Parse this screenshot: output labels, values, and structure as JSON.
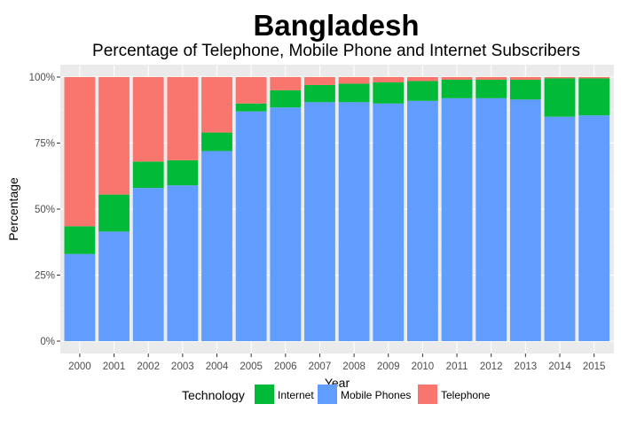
{
  "chart_data": {
    "type": "bar",
    "stacked": true,
    "title": "Bangladesh",
    "subtitle": "Percentage of Telephone, Mobile Phone and Internet Subscribers",
    "xlabel": "Year",
    "ylabel": "Percentage",
    "ylim": [
      0,
      1
    ],
    "yticks": [
      "0%",
      "25%",
      "50%",
      "75%",
      "100%"
    ],
    "grid": true,
    "legend_position": "bottom",
    "legend_title": "Technology",
    "categories": [
      "2000",
      "2001",
      "2002",
      "2003",
      "2004",
      "2005",
      "2006",
      "2007",
      "2008",
      "2009",
      "2010",
      "2011",
      "2012",
      "2013",
      "2014",
      "2015"
    ],
    "series": [
      {
        "name": "Mobile Phones",
        "color": "#619CFF",
        "values": [
          0.33,
          0.415,
          0.58,
          0.59,
          0.72,
          0.87,
          0.885,
          0.905,
          0.905,
          0.9,
          0.91,
          0.92,
          0.92,
          0.915,
          0.85,
          0.855
        ]
      },
      {
        "name": "Internet",
        "color": "#00BA38",
        "values": [
          0.105,
          0.14,
          0.1,
          0.095,
          0.07,
          0.03,
          0.065,
          0.065,
          0.07,
          0.08,
          0.075,
          0.07,
          0.07,
          0.075,
          0.145,
          0.14
        ]
      },
      {
        "name": "Telephone",
        "color": "#F8766D",
        "values": [
          0.565,
          0.445,
          0.32,
          0.315,
          0.21,
          0.1,
          0.05,
          0.03,
          0.025,
          0.02,
          0.015,
          0.01,
          0.01,
          0.01,
          0.005,
          0.005
        ]
      }
    ],
    "legend_order": [
      "Internet",
      "Mobile Phones",
      "Telephone"
    ]
  }
}
